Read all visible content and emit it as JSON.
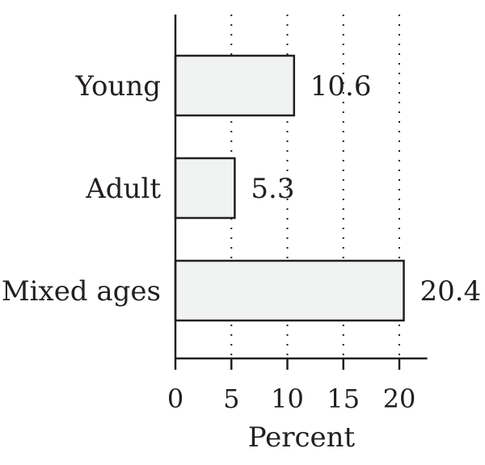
{
  "chart_data": {
    "type": "bar",
    "orientation": "horizontal",
    "categories": [
      "Young",
      "Adult",
      "Mixed ages"
    ],
    "values": [
      10.6,
      5.3,
      20.4
    ],
    "value_labels": [
      "10.6",
      "5.3",
      "20.4"
    ],
    "title": "",
    "xlabel": "Percent",
    "ylabel": "",
    "xlim": [
      0,
      22.5
    ],
    "xticks": [
      0,
      5,
      10,
      15,
      20
    ],
    "xtick_labels": [
      "0",
      "5",
      "10",
      "15",
      "20"
    ],
    "grid": "vertical dotted",
    "colors": {
      "bar_fill": "#f1f2f2",
      "bar_stroke": "#231f20",
      "text": "#231f20"
    }
  }
}
